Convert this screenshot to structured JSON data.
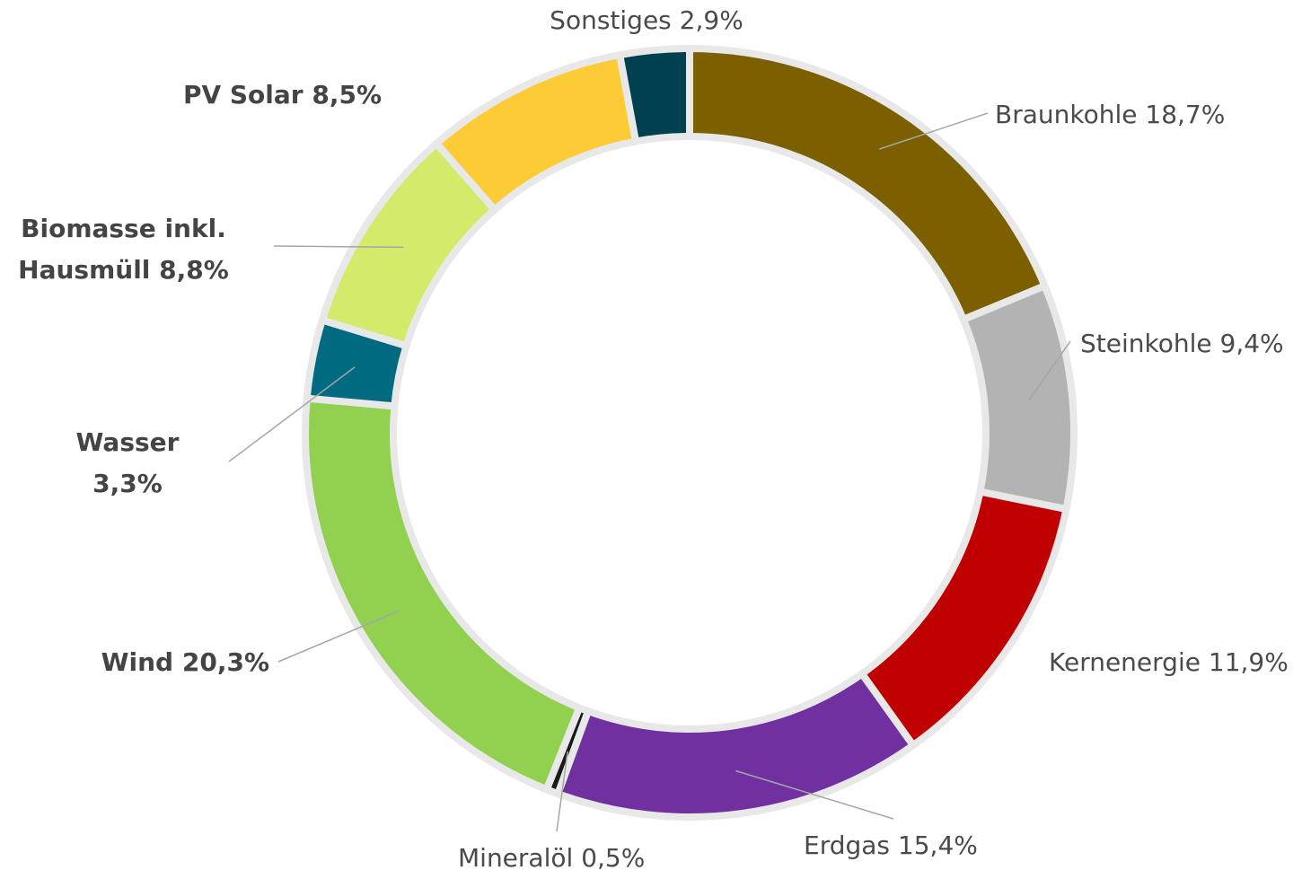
{
  "chart_data": {
    "type": "donut",
    "categories": [
      "Braunkohle",
      "Steinkohle",
      "Kernenergie",
      "Erdgas",
      "Mineralöl",
      "Wind",
      "Wasser",
      "Biomasse inkl. Hausmüll",
      "PV Solar",
      "Sonstiges"
    ],
    "values": [
      18.7,
      9.4,
      11.9,
      15.4,
      0.5,
      20.3,
      3.3,
      8.8,
      8.5,
      2.9
    ],
    "value_labels": [
      "18,7%",
      "9,4%",
      "11,9%",
      "15,4%",
      "0,5%",
      "20,3%",
      "3,3%",
      "8,8%",
      "8,5%",
      "2,9%"
    ],
    "colors": [
      "#7c6000",
      "#b3b3b3",
      "#c00000",
      "#7030a0",
      "#1a1a1a",
      "#92d050",
      "#006a80",
      "#d2eb6a",
      "#fdcb36",
      "#004050"
    ]
  }
}
